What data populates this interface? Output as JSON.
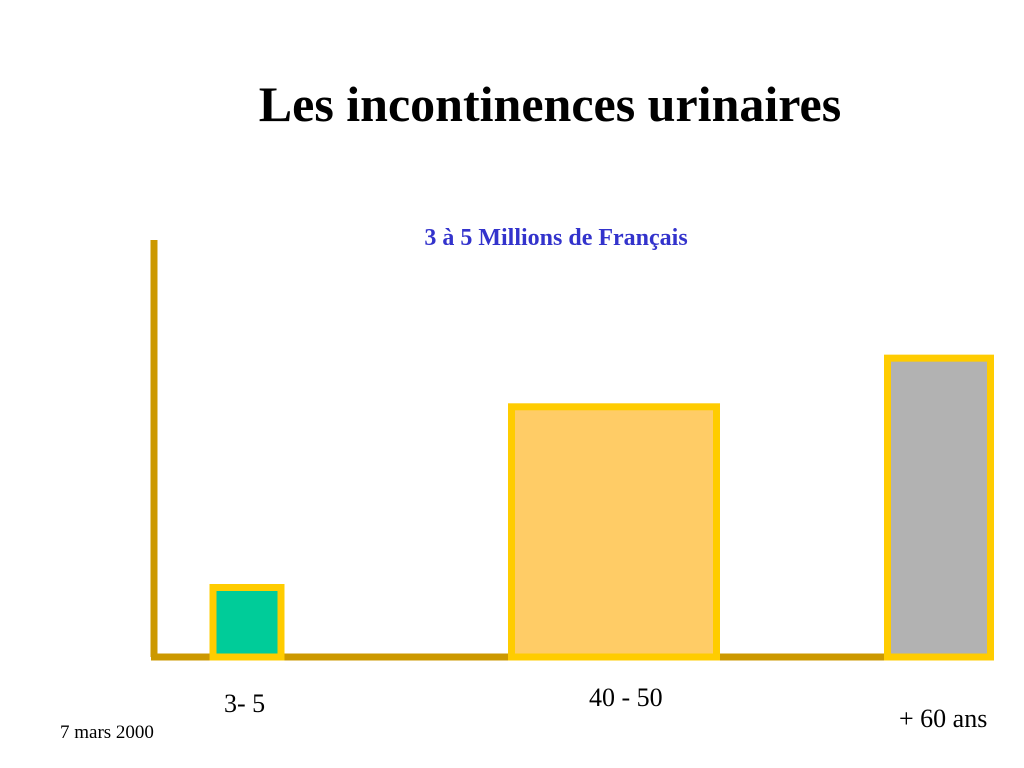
{
  "colors": {
    "axis": "#CC9900",
    "bar_border": "#FFCC00",
    "subtitle": "#3333CC"
  },
  "footer": {
    "date": "7 mars 2000"
  },
  "chart_data": {
    "type": "bar",
    "title": "Les incontinences urinaires",
    "subtitle": "3 à 5 Millions de Français",
    "categories": [
      "3- 5",
      "40 - 50",
      "+ 60 ans"
    ],
    "values": [
      1,
      3.6,
      4.3
    ],
    "bar_colors": [
      "#00CC99",
      "#FFCC66",
      "#B2B2B2"
    ],
    "ylim": [
      0,
      6
    ],
    "xlabel": "",
    "ylabel": "",
    "grid": false,
    "legend": "none"
  }
}
